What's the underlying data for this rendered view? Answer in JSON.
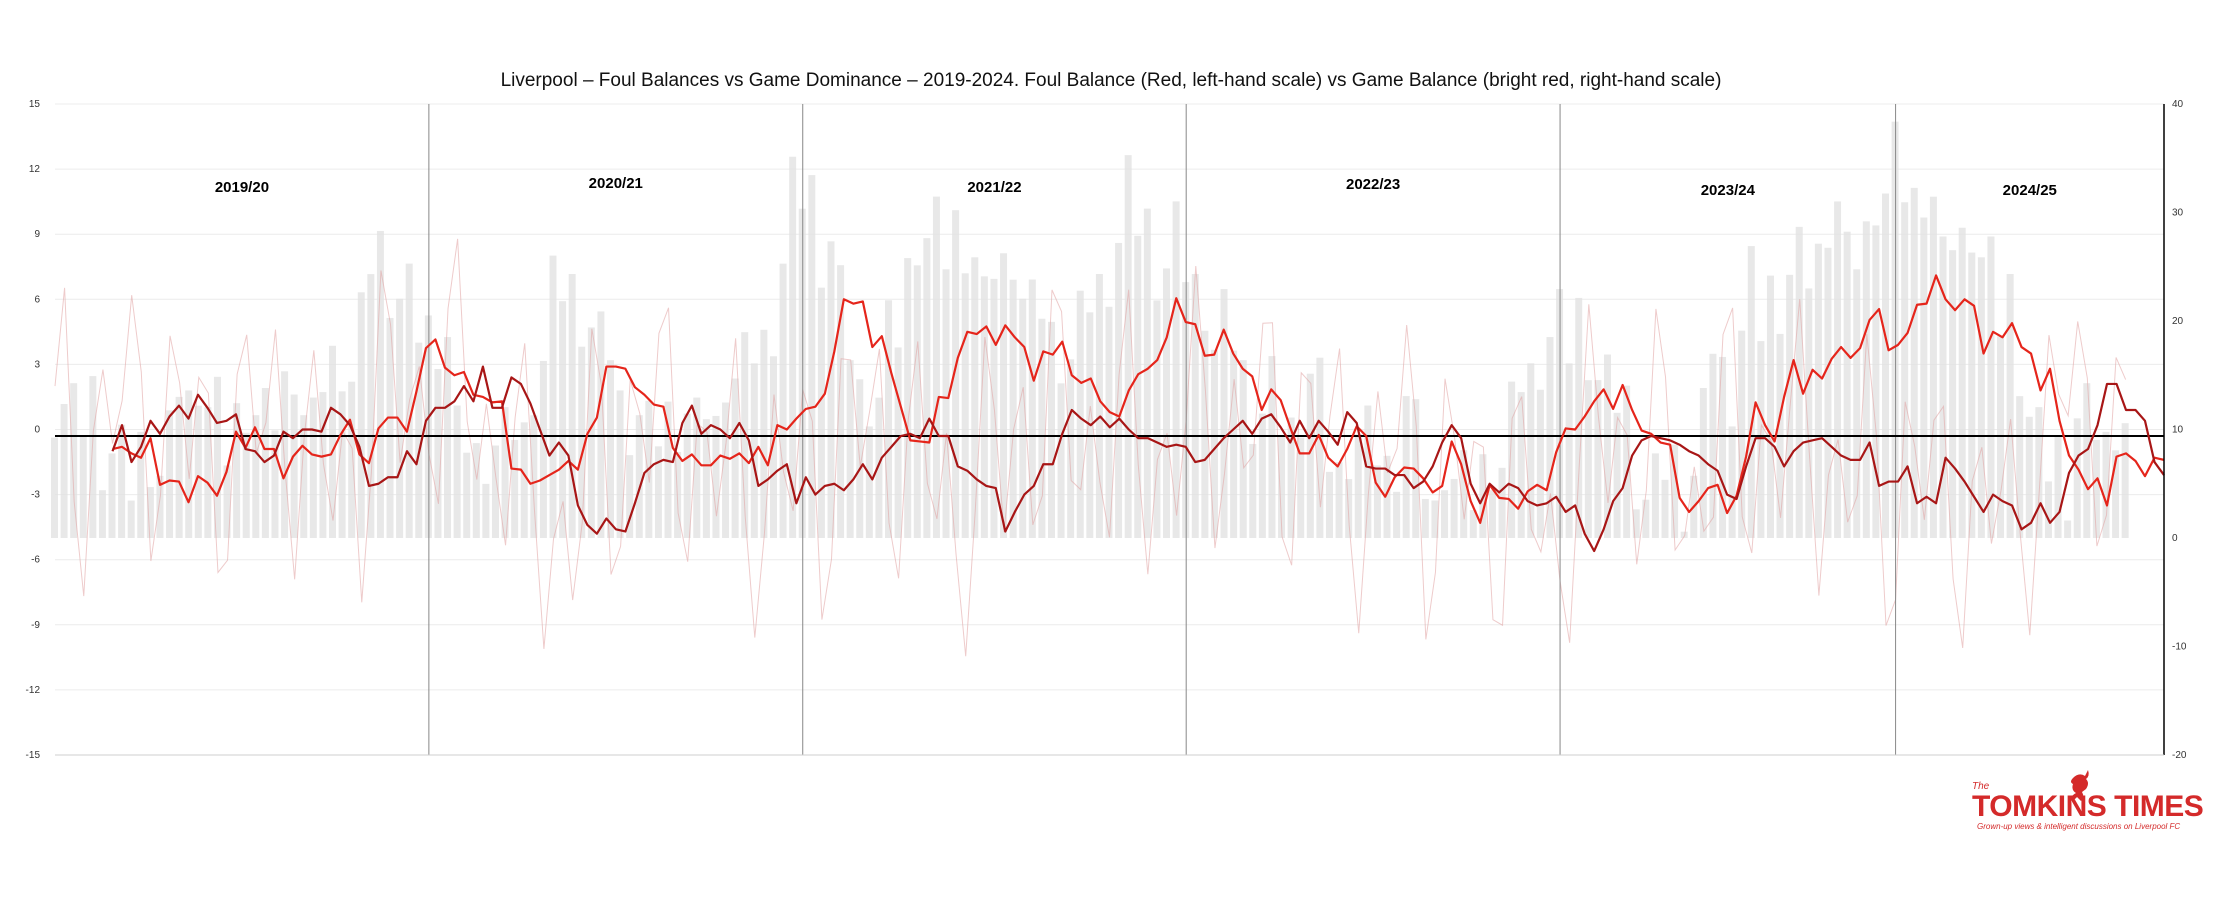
{
  "chart_data": {
    "type": "line",
    "title": "Liverpool – Foul Balances vs Game Dominance – 2019-2024. Foul Balance (Red, left-hand scale) vs Game Balance (bright red, right-hand scale)",
    "left_axis": {
      "ylim": [
        -15,
        15
      ],
      "ticks": [
        "15",
        "12",
        "9",
        "6",
        "3",
        "0",
        "-3",
        "-6",
        "-9",
        "-12",
        "-15"
      ]
    },
    "right_axis": {
      "ylim": [
        -20,
        40
      ],
      "ticks": [
        "40",
        "30",
        "20",
        "10",
        "0",
        "-10",
        "-20"
      ]
    },
    "x_range": [
      0,
      220
    ],
    "grid": true,
    "zero_line_value": -0.3,
    "seasons": [
      "2019/20",
      "2020/21",
      "2021/22",
      "2022/23",
      "2023/24",
      "2024/25"
    ],
    "season_boundaries": [
      39,
      78,
      118,
      157,
      192
    ],
    "colors": {
      "foul": "#a81616",
      "game": "#e5251b",
      "faint": "#e0a0a0",
      "bars": "#e2e2e2",
      "zero": "#000000",
      "grid": "#ececec",
      "divider": "#888888",
      "brand": "#d42a2a"
    },
    "series": [
      {
        "name": "Foul Balance",
        "axis": "left",
        "y": [
          -1,
          0.2,
          -1.5,
          -0.8,
          0.4,
          -0.2,
          0.6,
          1.1,
          0.5,
          1.6,
          1,
          0.3,
          0.4,
          0.7,
          -0.9,
          -1,
          -1.5,
          -1.2,
          -0.1,
          -0.4,
          0,
          0,
          -0.1,
          1,
          0.7,
          0.2,
          -0.8,
          -2.6,
          -2.5,
          -2.2,
          -2.2,
          -1,
          -1.6,
          0.4,
          1,
          1,
          1.3,
          2,
          1.3,
          2.9,
          1,
          1,
          2.4,
          2.1,
          1.2,
          0,
          -1.2,
          -0.6,
          -1.2,
          -3.5,
          -4.4,
          -4.8,
          -4.1,
          -4.6,
          -4.7,
          -3.4,
          -2,
          -1.6,
          -1.4,
          -1.5,
          0.3,
          1.1,
          -0.2,
          0.2,
          0,
          -0.4,
          0.3,
          -0.5,
          -2.6,
          -2.3,
          -1.9,
          -1.6,
          -3.4,
          -2.2,
          -3,
          -2.6,
          -2.5,
          -2.8,
          -2.3,
          -1.6,
          -2.3,
          -1.3,
          -0.8,
          -0.3,
          -0.2,
          -0.4,
          0.5,
          -0.3,
          -0.3,
          -1.7,
          -1.9,
          -2.3,
          -2.6,
          -2.7,
          -4.7,
          -3.8,
          -3,
          -2.6,
          -1.6,
          -1.6,
          -0.2,
          0.9,
          0.5,
          0.2,
          0.6,
          0.1,
          0.5,
          0,
          -0.4,
          -0.4,
          -0.6,
          -0.8,
          -0.7,
          -0.8,
          -1.5,
          -1.4,
          -0.9,
          -0.4,
          0,
          0.4,
          -0.2,
          0.5,
          0.7,
          0.1,
          -0.6,
          0.4,
          -0.4,
          0.4,
          -0.1,
          -0.7,
          0.8,
          0.3,
          -1.7,
          -1.8,
          -1.8,
          -2.1,
          -2.1,
          -2.7,
          -2.4,
          -1.7,
          -0.6,
          0.2,
          -0.4,
          -2.5,
          -3.4,
          -2.5,
          -2.9,
          -2.5,
          -2.7,
          -3.3,
          -3.5,
          -3.4,
          -3.1,
          -3.8,
          -3.5,
          -4.8,
          -5.6,
          -4.6,
          -3.3,
          -2.7,
          -1.2,
          -0.5,
          -0.3,
          -0.4,
          -0.5,
          -0.7,
          -1,
          -1.2,
          -1.6,
          -1.9,
          -3,
          -3.2,
          -1.7,
          -0.4,
          -0.4,
          -0.8,
          -1.7,
          -1,
          -0.6,
          -0.5,
          -0.4,
          -0.8,
          -1.2,
          -1.4,
          -1.4,
          -0.6,
          -2.6,
          -2.4,
          -2.4,
          -1.7,
          -3.4,
          -3.1,
          -3.4,
          -1.3,
          -1.8,
          -2.4,
          -3.1,
          -3.8,
          -3,
          -3.3,
          -3.5,
          -4.6,
          -4.3,
          -3.4,
          -4.3,
          -3.8,
          -2,
          -1.2,
          -0.9,
          0.2,
          2.1,
          2.1,
          0.9,
          0.9,
          0.4,
          -1.5,
          -2.1
        ]
      },
      {
        "name": "Game Balance",
        "axis": "right",
        "y": [
          8.2,
          8.4,
          7.8,
          7.4,
          9.2,
          4.9,
          5.3,
          5.2,
          3.3,
          5.7,
          5.1,
          3.9,
          6.1,
          9.8,
          8.3,
          10.2,
          8.2,
          8.2,
          5.5,
          7.5,
          8.5,
          7.7,
          7.5,
          7.7,
          9.5,
          10.9,
          7.7,
          6.9,
          10.1,
          11.1,
          11.1,
          9.8,
          13.5,
          17.5,
          18.3,
          15.7,
          15,
          15.3,
          13.2,
          13,
          12.5,
          12.6,
          6.4,
          6.3,
          5,
          5.3,
          5.8,
          6.3,
          7.1,
          6.3,
          9.6,
          11.1,
          15.8,
          15.8,
          15.6,
          13.9,
          13.2,
          12.3,
          12.1,
          8.3,
          7.1,
          7.7,
          6.7,
          6.7,
          7.6,
          7.3,
          7.8,
          6.9,
          8.4,
          6.7,
          10.4,
          10,
          11,
          11.9,
          12.1,
          13.3,
          17.2,
          22,
          21.6,
          21.8,
          17.6,
          18.6,
          15.2,
          12.1,
          9,
          8.9,
          8.8,
          13,
          12.9,
          16.6,
          19,
          18.8,
          19.5,
          17.8,
          19.6,
          18.5,
          17.6,
          14.5,
          17.2,
          16.9,
          18.1,
          15,
          14.3,
          14.7,
          12.6,
          11.6,
          11.2,
          13.6,
          15.1,
          15.6,
          16.4,
          18.5,
          22.1,
          19.9,
          19.7,
          16.8,
          16.9,
          19.2,
          17,
          15.6,
          14.9,
          11.8,
          13.7,
          12.7,
          10.2,
          7.8,
          7.8,
          9.5,
          7.4,
          6.6,
          8.2,
          10.3,
          9.4,
          5.1,
          3.8,
          5.6,
          6.5,
          6.4,
          5.5,
          4.2,
          4.8,
          8.9,
          6.8,
          3.4,
          1.4,
          4.9,
          3.7,
          3.6,
          2.7,
          4.3,
          4.9,
          4.4,
          7.9,
          10.1,
          10,
          11.2,
          12.6,
          13.7,
          11.9,
          14.1,
          11.8,
          9.9,
          9.6,
          8.8,
          8.6,
          3.7,
          2.4,
          3.4,
          4.6,
          4.9,
          2.3,
          3.9,
          7.5,
          12.5,
          10.4,
          8.9,
          13,
          16.4,
          13.3,
          15.5,
          14.7,
          16.5,
          17.6,
          16.6,
          17.5,
          20.1,
          21.1,
          17.3,
          17.8,
          18.9,
          21.5,
          21.6,
          24.2,
          22,
          21,
          22,
          21.4,
          17,
          19,
          18.5,
          19.8,
          17.6,
          17,
          13.6,
          15.6,
          10.8,
          7.6,
          6.3,
          4.5,
          5.5,
          3,
          7.5,
          7.8,
          7.1,
          5.7,
          7.4,
          7.2,
          3.7
        ]
      }
    ]
  },
  "brand": {
    "the": "The",
    "name": "TOMKINS TIMES",
    "tagline": "Grown-up views & intelligent discussions on Liverpool FC"
  }
}
